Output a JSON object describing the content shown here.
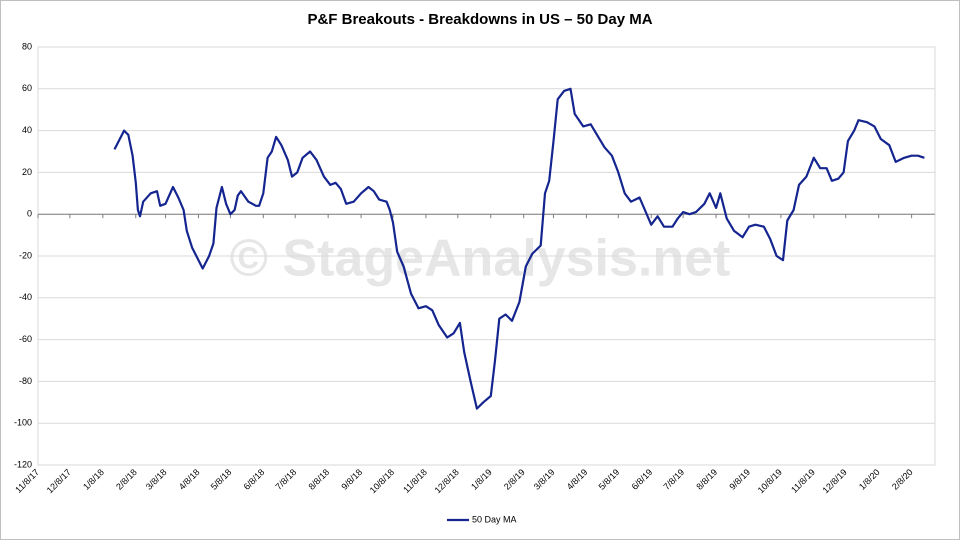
{
  "chart_data": {
    "type": "line",
    "title": "P&F Breakouts - Breakdowns in US – 50 Day MA",
    "watermark": "© StageAnalysis.net",
    "grid": true,
    "legend": "bottom",
    "xlim": [
      "2017-11-08",
      "2020-03-01"
    ],
    "xticks": [
      {
        "value": "2017-11-08",
        "label": "11/8/17"
      },
      {
        "value": "2017-12-08",
        "label": "12/8/17"
      },
      {
        "value": "2018-01-08",
        "label": "1/8/18"
      },
      {
        "value": "2018-02-08",
        "label": "2/8/18"
      },
      {
        "value": "2018-03-08",
        "label": "3/8/18"
      },
      {
        "value": "2018-04-08",
        "label": "4/8/18"
      },
      {
        "value": "2018-05-08",
        "label": "5/8/18"
      },
      {
        "value": "2018-06-08",
        "label": "6/8/18"
      },
      {
        "value": "2018-07-08",
        "label": "7/8/18"
      },
      {
        "value": "2018-08-08",
        "label": "8/8/18"
      },
      {
        "value": "2018-09-08",
        "label": "9/8/18"
      },
      {
        "value": "2018-10-08",
        "label": "10/8/18"
      },
      {
        "value": "2018-11-08",
        "label": "11/8/18"
      },
      {
        "value": "2018-12-08",
        "label": "12/8/18"
      },
      {
        "value": "2019-01-08",
        "label": "1/8/19"
      },
      {
        "value": "2019-02-08",
        "label": "2/8/19"
      },
      {
        "value": "2019-03-08",
        "label": "3/8/19"
      },
      {
        "value": "2019-04-08",
        "label": "4/8/19"
      },
      {
        "value": "2019-05-08",
        "label": "5/8/19"
      },
      {
        "value": "2019-06-08",
        "label": "6/8/19"
      },
      {
        "value": "2019-07-08",
        "label": "7/8/19"
      },
      {
        "value": "2019-08-08",
        "label": "8/8/19"
      },
      {
        "value": "2019-09-08",
        "label": "9/8/19"
      },
      {
        "value": "2019-10-08",
        "label": "10/8/19"
      },
      {
        "value": "2019-11-08",
        "label": "11/8/19"
      },
      {
        "value": "2019-12-08",
        "label": "12/8/19"
      },
      {
        "value": "2020-01-08",
        "label": "1/8/20"
      },
      {
        "value": "2020-02-08",
        "label": "2/8/20"
      }
    ],
    "ylim": [
      -120,
      80
    ],
    "yticks": [
      -120,
      -100,
      -80,
      -60,
      -40,
      -20,
      0,
      20,
      40,
      60,
      80
    ],
    "x": [
      "2018-01-19",
      "2018-01-28",
      "2018-02-01",
      "2018-02-05",
      "2018-02-08",
      "2018-02-10",
      "2018-02-12",
      "2018-02-15",
      "2018-02-22",
      "2018-02-28",
      "2018-03-03",
      "2018-03-08",
      "2018-03-15",
      "2018-03-20",
      "2018-03-25",
      "2018-03-28",
      "2018-04-02",
      "2018-04-08",
      "2018-04-12",
      "2018-04-18",
      "2018-04-22",
      "2018-04-25",
      "2018-04-30",
      "2018-05-04",
      "2018-05-08",
      "2018-05-12",
      "2018-05-15",
      "2018-05-18",
      "2018-05-25",
      "2018-06-01",
      "2018-06-04",
      "2018-06-08",
      "2018-06-12",
      "2018-06-16",
      "2018-06-20",
      "2018-06-25",
      "2018-07-01",
      "2018-07-05",
      "2018-07-10",
      "2018-07-15",
      "2018-07-22",
      "2018-07-28",
      "2018-08-04",
      "2018-08-10",
      "2018-08-15",
      "2018-08-20",
      "2018-08-25",
      "2018-09-01",
      "2018-09-08",
      "2018-09-15",
      "2018-09-20",
      "2018-09-25",
      "2018-10-02",
      "2018-10-05",
      "2018-10-08",
      "2018-10-12",
      "2018-10-18",
      "2018-10-25",
      "2018-11-01",
      "2018-11-08",
      "2018-11-14",
      "2018-11-20",
      "2018-11-28",
      "2018-12-04",
      "2018-12-10",
      "2018-12-14",
      "2018-12-20",
      "2018-12-26",
      "2019-01-01",
      "2019-01-08",
      "2019-01-12",
      "2019-01-16",
      "2019-01-22",
      "2019-01-28",
      "2019-02-04",
      "2019-02-10",
      "2019-02-16",
      "2019-02-24",
      "2019-02-28",
      "2019-03-04",
      "2019-03-08",
      "2019-03-12",
      "2019-03-18",
      "2019-03-24",
      "2019-03-28",
      "2019-04-05",
      "2019-04-12",
      "2019-04-18",
      "2019-04-25",
      "2019-05-02",
      "2019-05-08",
      "2019-05-14",
      "2019-05-20",
      "2019-05-28",
      "2019-06-02",
      "2019-06-08",
      "2019-06-14",
      "2019-06-20",
      "2019-06-28",
      "2019-07-03",
      "2019-07-08",
      "2019-07-14",
      "2019-07-20",
      "2019-07-28",
      "2019-08-02",
      "2019-08-08",
      "2019-08-12",
      "2019-08-18",
      "2019-08-25",
      "2019-09-02",
      "2019-09-08",
      "2019-09-14",
      "2019-09-22",
      "2019-09-28",
      "2019-10-04",
      "2019-10-10",
      "2019-10-14",
      "2019-10-20",
      "2019-10-25",
      "2019-11-01",
      "2019-11-08",
      "2019-11-14",
      "2019-11-20",
      "2019-11-25",
      "2019-12-01",
      "2019-12-06",
      "2019-12-10",
      "2019-12-16",
      "2019-12-20",
      "2019-12-28",
      "2020-01-04",
      "2020-01-10",
      "2020-01-18",
      "2020-01-24",
      "2020-02-01",
      "2020-02-08",
      "2020-02-14",
      "2020-02-20"
    ],
    "series": [
      {
        "name": "50 Day MA",
        "color": "#14258f",
        "values": [
          31,
          40,
          38,
          28,
          15,
          2,
          -1,
          6,
          10,
          11,
          4,
          5,
          13,
          8,
          2,
          -8,
          -16,
          -22,
          -26,
          -20,
          -14,
          3,
          13,
          5,
          0,
          2,
          9,
          11,
          6,
          4,
          4,
          10,
          27,
          30,
          37,
          33,
          26,
          18,
          20,
          27,
          30,
          26,
          18,
          14,
          15,
          12,
          5,
          6,
          10,
          13,
          11,
          7,
          6,
          2,
          -4,
          -18,
          -25,
          -38,
          -45,
          -44,
          -46,
          -53,
          -59,
          -57,
          -52,
          -66,
          -80,
          -93,
          -90,
          -87,
          -70,
          -50,
          -48,
          -51,
          -42,
          -25,
          -19,
          -15,
          10,
          16,
          35,
          55,
          59,
          60,
          48,
          42,
          43,
          38,
          32,
          28,
          20,
          10,
          6,
          8,
          2,
          -5,
          -1,
          -6,
          -6,
          -2,
          1,
          0,
          1,
          5,
          10,
          3,
          10,
          -2,
          -8,
          -11,
          -6,
          -5,
          -6,
          -12,
          -20,
          -22,
          -3,
          2,
          14,
          18,
          27,
          22,
          22,
          16,
          17,
          20,
          35,
          40,
          45,
          44,
          42,
          36,
          33,
          25,
          27,
          28,
          28,
          27
        ]
      }
    ]
  }
}
